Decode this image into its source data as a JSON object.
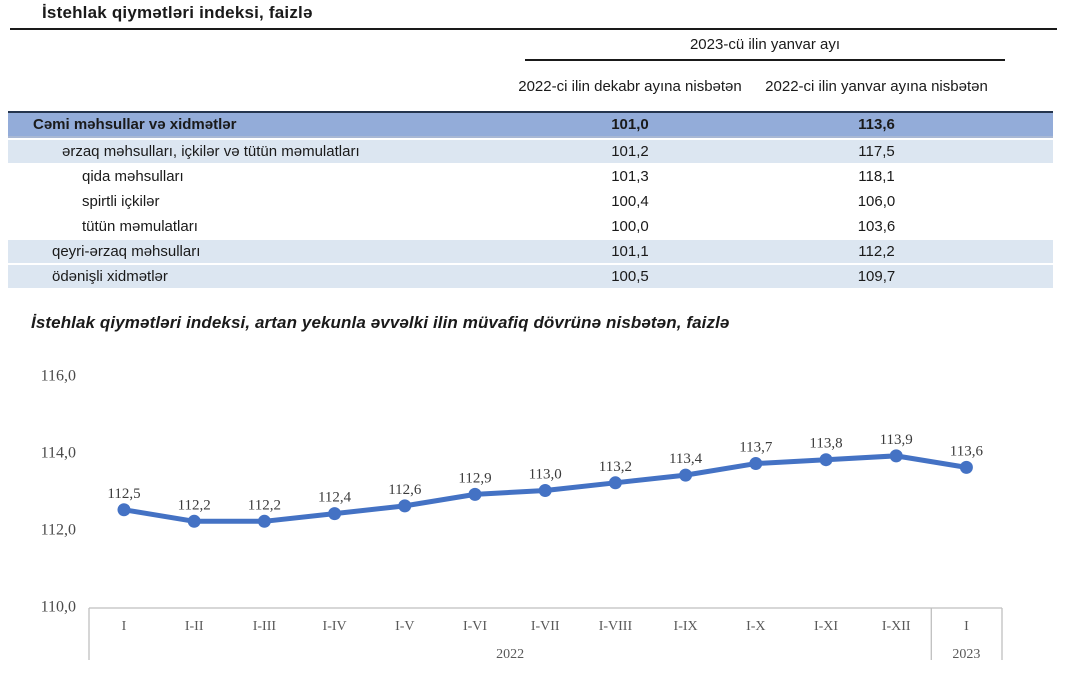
{
  "page": {
    "title": "İstehlak qiymətləri indeksi, faizlə"
  },
  "table": {
    "col_group_header": "2023-cü ilin yanvar ayı",
    "col_headers": [
      "2022-ci ilin dekabr ayına nisbətən",
      "2022-ci ilin yanvar ayına nisbətən"
    ],
    "rows": [
      {
        "label": "Cəmi məhsullar və xidmətlər",
        "values": [
          "101,0",
          "113,6"
        ],
        "level": 0,
        "variant": "total"
      },
      {
        "label": "ərzaq məhsulları, içkilər və tütün məmulatları",
        "values": [
          "101,2",
          "117,5"
        ],
        "level": 2,
        "variant": "shaded"
      },
      {
        "label": "qida məhsulları",
        "values": [
          "101,3",
          "118,1"
        ],
        "level": 3,
        "variant": "plain"
      },
      {
        "label": "spirtli içkilər",
        "values": [
          "100,4",
          "106,0"
        ],
        "level": 3,
        "variant": "plain"
      },
      {
        "label": "tütün məmulatları",
        "values": [
          "100,0",
          "103,6"
        ],
        "level": 3,
        "variant": "plain"
      },
      {
        "label": "qeyri-ərzaq məhsulları",
        "values": [
          "101,1",
          "112,2"
        ],
        "level": 1,
        "variant": "shaded"
      },
      {
        "label": "ödənişli xidmətlər",
        "values": [
          "100,5",
          "109,7"
        ],
        "level": 1,
        "variant": "shaded"
      }
    ]
  },
  "chart_data": {
    "type": "line",
    "title": "İstehlak qiymətləri indeksi, artan yekunla əvvəlki ilin müvafiq dövrünə nisbətən, faizlə",
    "x": [
      "I",
      "I-II",
      "I-III",
      "I-IV",
      "I-V",
      "I-VI",
      "I-VII",
      "I-VIII",
      "I-IX",
      "I-X",
      "I-XI",
      "I-XII",
      "I"
    ],
    "x_groups": [
      {
        "label": "2022",
        "from": 0,
        "to": 11
      },
      {
        "label": "2023",
        "from": 12,
        "to": 12
      }
    ],
    "values": [
      112.5,
      112.2,
      112.2,
      112.4,
      112.6,
      112.9,
      113.0,
      113.2,
      113.4,
      113.7,
      113.8,
      113.9,
      113.6
    ],
    "point_labels": [
      "112,5",
      "112,2",
      "112,2",
      "112,4",
      "112,6",
      "112,9",
      "113,0",
      "113,2",
      "113,4",
      "113,7",
      "113,8",
      "113,9",
      "113,6"
    ],
    "y_ticks": [
      {
        "label": "116,0",
        "value": 116
      },
      {
        "label": "114,0",
        "value": 114
      },
      {
        "label": "112,0",
        "value": 112
      },
      {
        "label": "110,0",
        "value": 110
      }
    ],
    "ylim": [
      110,
      116
    ],
    "xlabel": "",
    "ylabel": "",
    "grid": false,
    "legend": "none",
    "line_color": "#4472C4",
    "marker": "circle"
  },
  "colors": {
    "accent_line": "#4472C4",
    "table_total_row_bg": "#93ACD9",
    "table_shaded_row_bg": "#DCE6F1",
    "table_total_top_border": "#24344d",
    "axis_line": "#BFBFBF",
    "axis_text": "#595959"
  }
}
